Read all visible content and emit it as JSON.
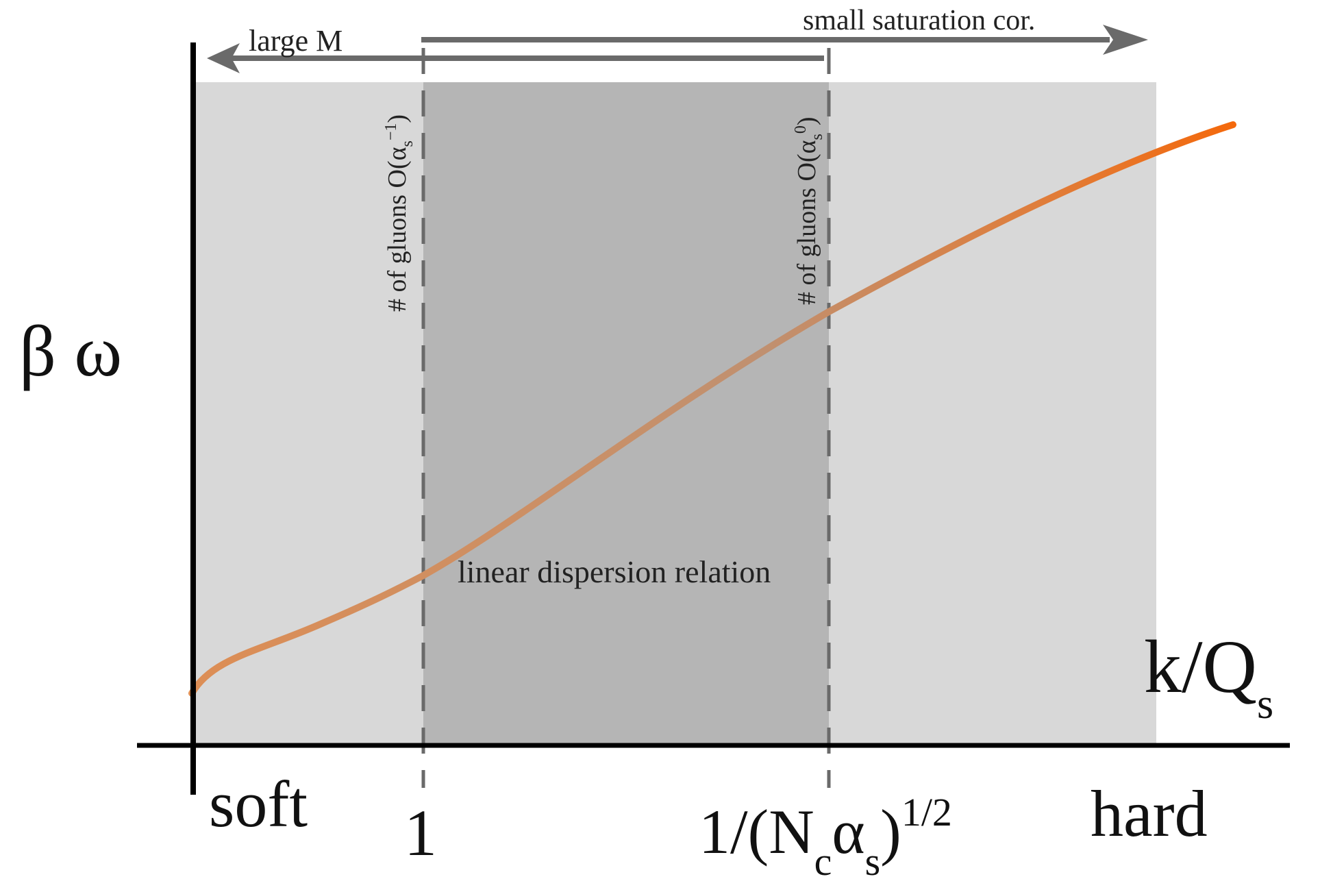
{
  "axes": {
    "y_label": "β ω",
    "x_label_main": "k/Q",
    "x_label_sub": "s"
  },
  "ticks": {
    "soft": "soft",
    "one": "1",
    "mid_prefix": "1/(N",
    "mid_sub_c": "c",
    "mid_alpha": "α",
    "mid_sub_s": "s",
    "mid_close": ")",
    "mid_sup": "1/2",
    "hard": "hard"
  },
  "arrows": {
    "large_m": "large M",
    "small_sat": "small saturation cor."
  },
  "regions": {
    "middle_label": "linear dispersion relation"
  },
  "vlines": {
    "left_label_prefix": "# of gluons O(α",
    "left_label_sub": "s",
    "left_label_sup": "−1",
    "left_label_close": ")",
    "right_label_prefix": "# of gluons O(α",
    "right_label_sub": "s",
    "right_label_sup": "0",
    "right_label_close": ")"
  },
  "colors": {
    "light_region": "#d8d8d8",
    "dark_region": "#b5b5b5",
    "curve_start": "#d8956a",
    "curve_end": "#f26b0f",
    "arrow": "#6a6a6a",
    "dash": "#6a6a6a"
  }
}
